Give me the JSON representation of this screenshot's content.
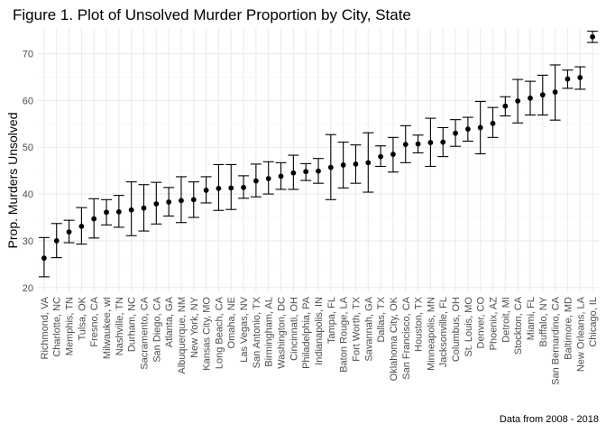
{
  "chart_data": {
    "type": "scatter",
    "title": "Figure 1. Plot of Unsolved Murder Proportion by City, State",
    "xlabel": "",
    "ylabel": "Prop. Murders Unsolved",
    "caption": "Data from 2008 - 2018",
    "ylim": [
      19,
      75.5
    ],
    "yticks": [
      20,
      30,
      40,
      50,
      60,
      70
    ],
    "grid": true,
    "error_bars": true,
    "colors": {
      "point": "#000000",
      "errorbar": "#000000",
      "grid_major": "#ebebeb",
      "grid_minor": "#f5f5f5",
      "text_tick": "#4d4d4d"
    },
    "categories": [
      "Richmond, VA",
      "Charlotte, NC",
      "Memphis, TN",
      "Tulsa, OK",
      "Fresno, CA",
      "Milwaukee, wI",
      "Nashville, TN",
      "Durham, NC",
      "Sacramento, CA",
      "San Diego, CA",
      "Atlanta, GA",
      "Albuquerque, NM",
      "New York, NY",
      "Kansas City, MO",
      "Long Beach, CA",
      "Omaha, NE",
      "Las Vegas, NV",
      "San Antonio, TX",
      "Birmingham, AL",
      "Washington, DC",
      "Cincinnati, OH",
      "Philadelphia, PA",
      "Indianapolis, IN",
      "Tampa, FL",
      "Baton Rouge, LA",
      "Fort Worth, TX",
      "Savannah, GA",
      "Dallas, TX",
      "Oklahoma City, OK",
      "San Francisco, CA",
      "Houston, TX",
      "Minneapolis, MN",
      "Jacksonville, FL",
      "Columbus, OH",
      "St. Louis, MO",
      "Denver, CO",
      "Phoenix, AZ",
      "Detroit, MI",
      "Stockton, CA",
      "Miami, FL",
      "Buffalo, NY",
      "San Bernardino, CA",
      "Baltimore, MD",
      "New Orleans, LA",
      "Chicago, IL"
    ],
    "series": [
      {
        "values": [
          26.3,
          30.0,
          31.9,
          33.1,
          34.7,
          36.1,
          36.2,
          36.6,
          37.0,
          37.9,
          38.3,
          38.6,
          38.8,
          40.8,
          41.2,
          41.3,
          41.4,
          42.8,
          43.3,
          43.8,
          44.5,
          44.8,
          44.9,
          45.7,
          46.2,
          46.4,
          46.7,
          48.0,
          48.5,
          50.6,
          50.7,
          51.0,
          51.1,
          53.0,
          53.9,
          54.2,
          55.1,
          58.8,
          59.9,
          60.5,
          61.2,
          61.8,
          64.6,
          64.9,
          73.6
        ],
        "lower": [
          22.3,
          26.4,
          29.6,
          29.3,
          30.6,
          33.4,
          32.9,
          31.1,
          32.1,
          33.6,
          35.3,
          33.9,
          35.0,
          38.1,
          36.5,
          36.7,
          39.1,
          39.4,
          40.0,
          41.0,
          41.0,
          42.9,
          42.3,
          38.8,
          41.3,
          42.3,
          40.4,
          45.9,
          44.7,
          46.7,
          48.8,
          45.9,
          48.0,
          50.2,
          51.3,
          48.6,
          52.1,
          56.7,
          55.2,
          56.9,
          56.9,
          55.8,
          62.6,
          62.4,
          72.4
        ],
        "upper": [
          30.7,
          33.7,
          34.4,
          37.1,
          39.0,
          38.8,
          39.7,
          42.6,
          42.0,
          42.5,
          41.4,
          43.7,
          42.6,
          43.7,
          46.3,
          46.3,
          43.9,
          46.4,
          46.9,
          46.7,
          48.3,
          46.5,
          47.6,
          52.7,
          51.1,
          50.5,
          53.1,
          50.3,
          52.1,
          54.6,
          52.6,
          56.2,
          54.2,
          55.9,
          56.4,
          59.8,
          58.5,
          60.8,
          64.5,
          64.1,
          65.4,
          67.6,
          66.5,
          67.2,
          74.8
        ]
      }
    ]
  }
}
